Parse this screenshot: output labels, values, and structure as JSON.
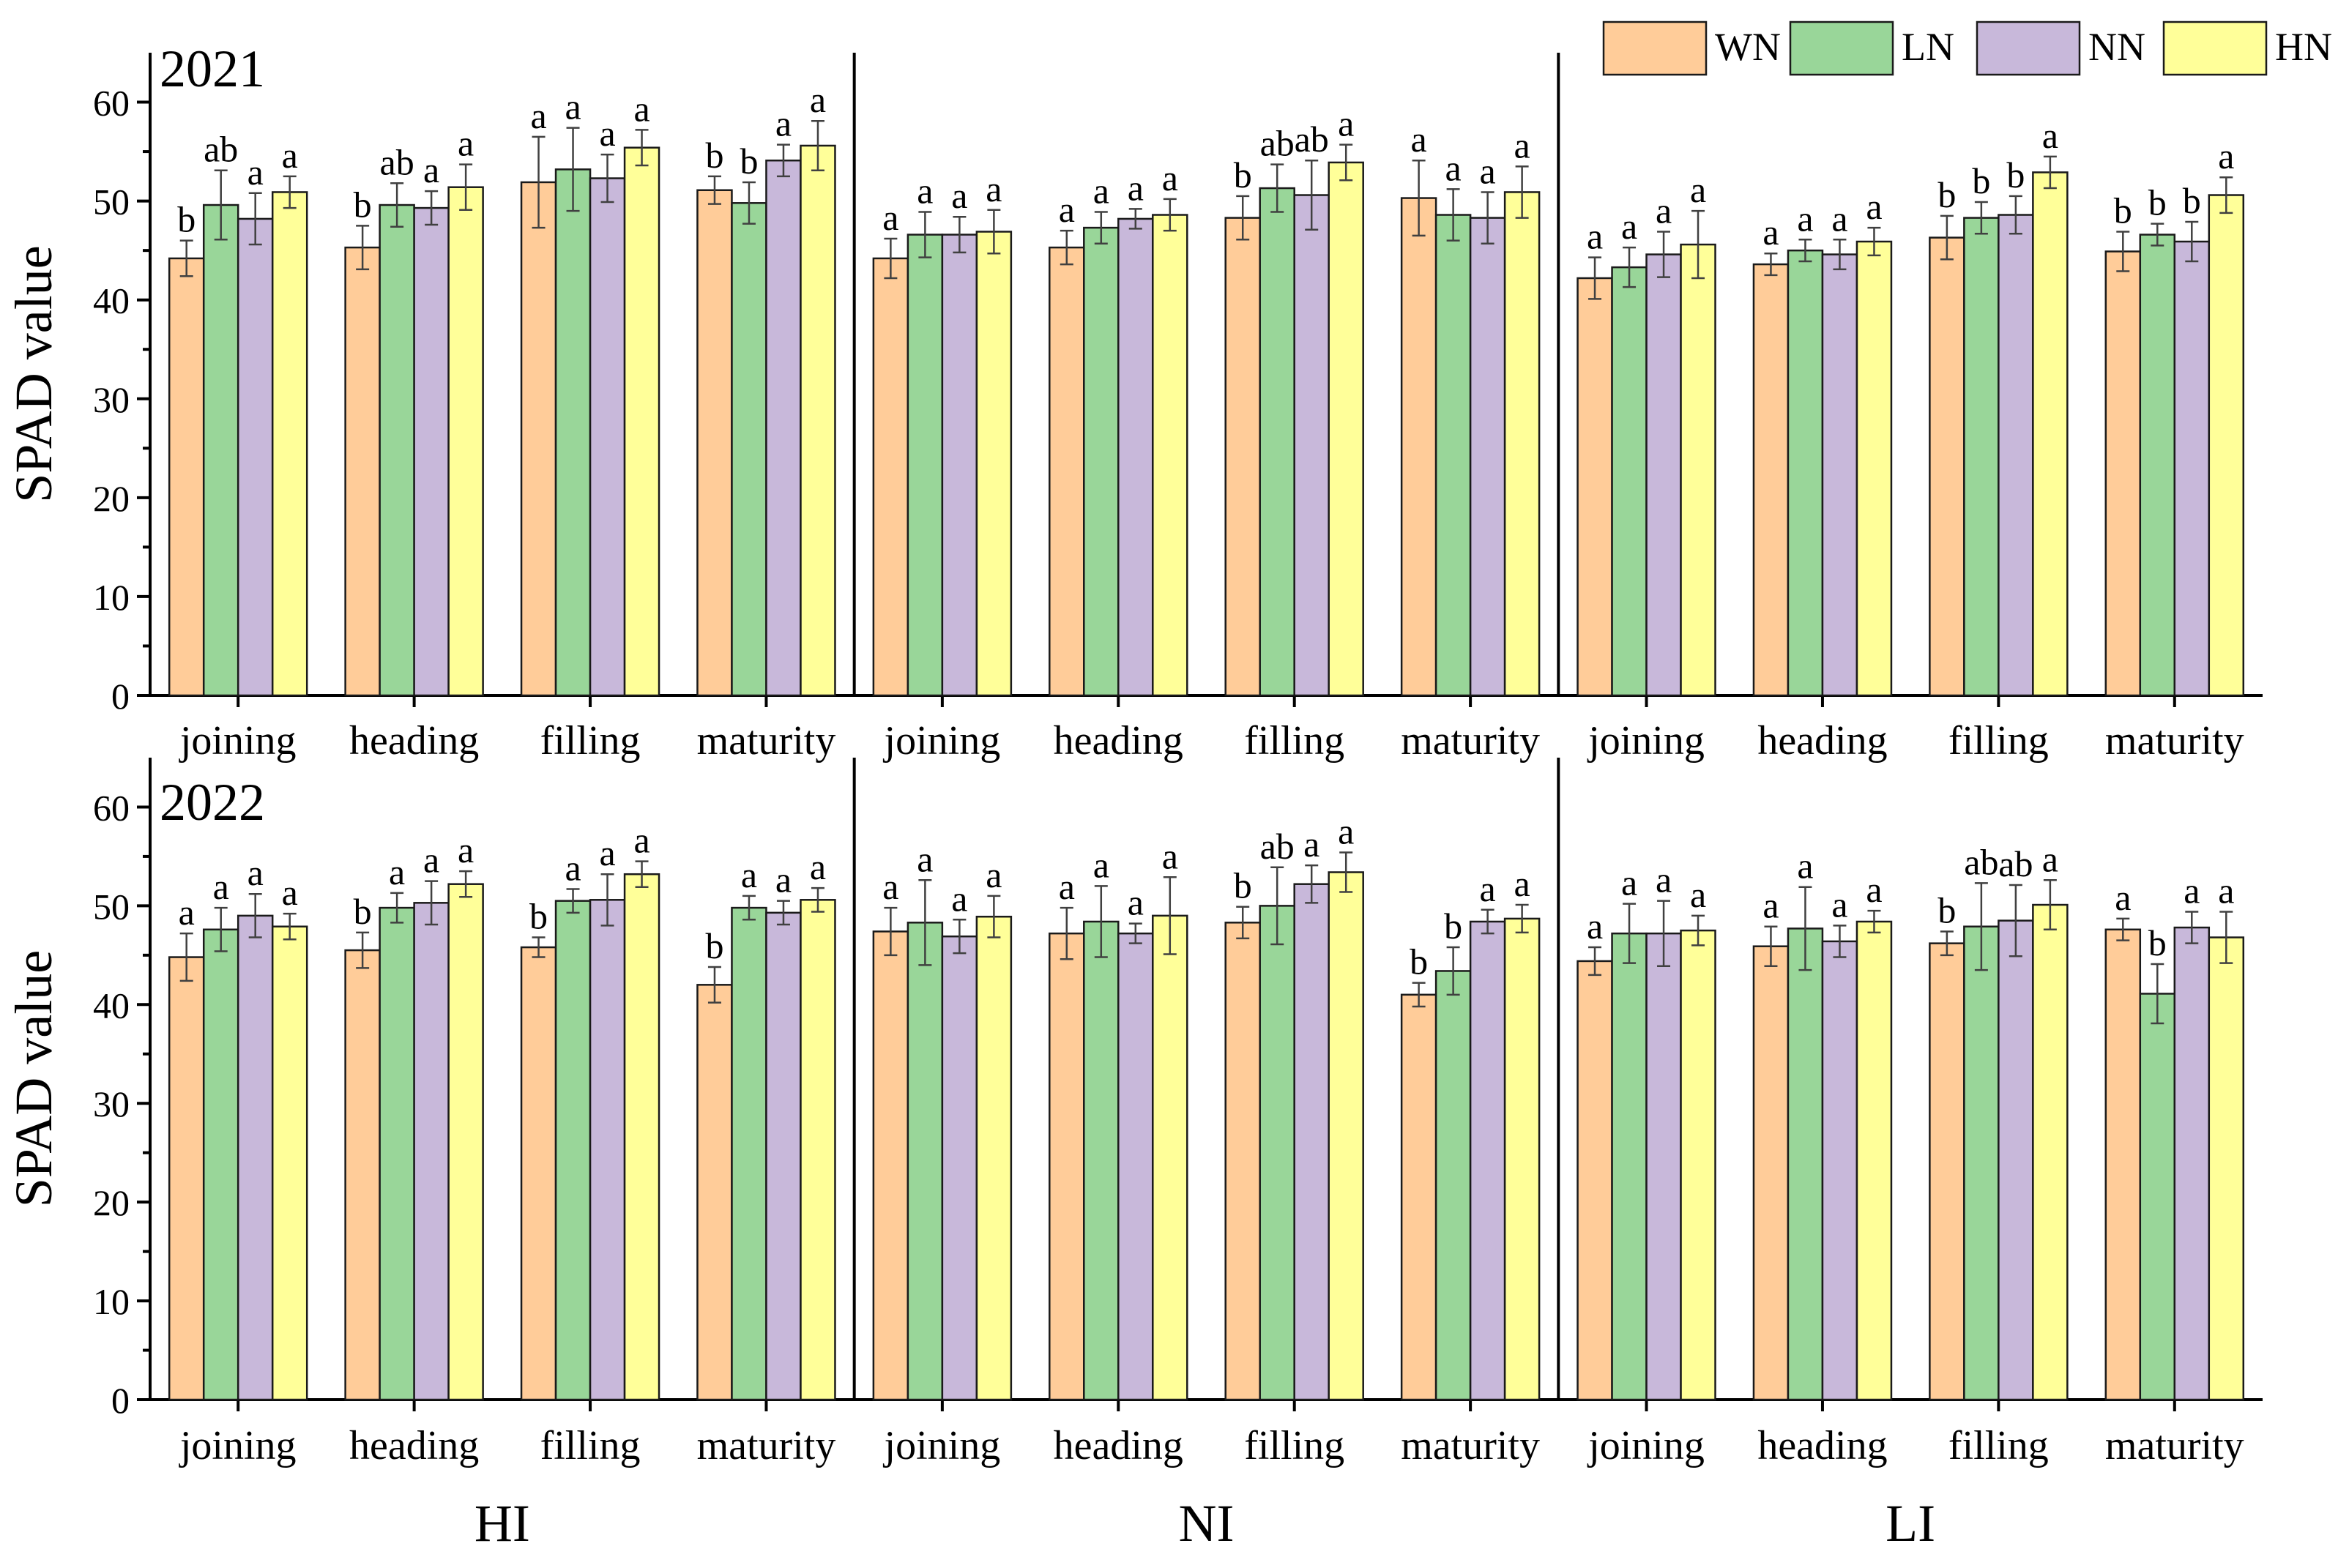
{
  "chart_data": {
    "type": "bar",
    "ylabel": "SPAD value",
    "ylim": [
      0,
      65
    ],
    "yticks": [
      0,
      10,
      20,
      30,
      40,
      50,
      60
    ],
    "categories": [
      "joining",
      "heading",
      "filling",
      "maturity"
    ],
    "legend": {
      "position": "top-right",
      "entries": [
        {
          "name": "WN",
          "color": "#FFCC99"
        },
        {
          "name": "LN",
          "color": "#99D699"
        },
        {
          "name": "NN",
          "color": "#C8B8DA"
        },
        {
          "name": "HN",
          "color": "#FFFF99"
        }
      ]
    },
    "groups": [
      "HI",
      "NI",
      "LI"
    ],
    "panels": [
      {
        "year": "2021",
        "groups": [
          {
            "name": "HI",
            "values": [
              [
                44.2,
                49.6,
                48.2,
                50.9
              ],
              [
                45.3,
                49.6,
                49.3,
                51.4
              ],
              [
                51.9,
                53.2,
                52.3,
                55.4
              ],
              [
                51.1,
                49.8,
                54.1,
                55.6
              ]
            ],
            "errors": [
              [
                1.8,
                3.5,
                2.6,
                1.6
              ],
              [
                2.2,
                2.2,
                1.7,
                2.3
              ],
              [
                4.6,
                4.2,
                2.4,
                1.8
              ],
              [
                1.4,
                2.1,
                1.6,
                2.5
              ]
            ],
            "letters": [
              [
                "b",
                "ab",
                "a",
                "a"
              ],
              [
                "b",
                "ab",
                "a",
                "a"
              ],
              [
                "a",
                "a",
                "a",
                "a"
              ],
              [
                "b",
                "b",
                "a",
                "a"
              ]
            ]
          },
          {
            "name": "NI",
            "values": [
              [
                44.2,
                46.6,
                46.6,
                46.9
              ],
              [
                45.3,
                47.3,
                48.2,
                48.6
              ],
              [
                48.3,
                51.3,
                50.6,
                53.9
              ],
              [
                50.3,
                48.6,
                48.3,
                50.9
              ]
            ],
            "errors": [
              [
                2.0,
                2.3,
                1.8,
                2.2
              ],
              [
                1.7,
                1.6,
                1.0,
                1.6
              ],
              [
                2.2,
                2.4,
                3.5,
                1.8
              ],
              [
                3.8,
                2.6,
                2.6,
                2.6
              ]
            ],
            "letters": [
              [
                "a",
                "a",
                "a",
                "a"
              ],
              [
                "a",
                "a",
                "a",
                "a"
              ],
              [
                "b",
                "ab",
                "ab",
                "a"
              ],
              [
                "a",
                "a",
                "a",
                "a"
              ]
            ]
          },
          {
            "name": "LI",
            "values": [
              [
                42.2,
                43.3,
                44.6,
                45.6
              ],
              [
                43.6,
                45.0,
                44.6,
                45.9
              ],
              [
                46.3,
                48.3,
                48.6,
                52.9
              ],
              [
                44.9,
                46.6,
                45.9,
                50.6
              ]
            ],
            "errors": [
              [
                2.1,
                2.0,
                2.3,
                3.4
              ],
              [
                1.1,
                1.1,
                1.5,
                1.4
              ],
              [
                2.2,
                1.6,
                1.9,
                1.6
              ],
              [
                2.0,
                1.1,
                2.0,
                1.8
              ]
            ],
            "letters": [
              [
                "a",
                "a",
                "a",
                "a"
              ],
              [
                "a",
                "a",
                "a",
                "a"
              ],
              [
                "b",
                "b",
                "b",
                "a"
              ],
              [
                "b",
                "b",
                "b",
                "a"
              ]
            ]
          }
        ]
      },
      {
        "year": "2022",
        "groups": [
          {
            "name": "HI",
            "values": [
              [
                44.8,
                47.6,
                49.0,
                47.9
              ],
              [
                45.5,
                49.8,
                50.3,
                52.2
              ],
              [
                45.8,
                50.5,
                50.6,
                53.2
              ],
              [
                42.0,
                49.8,
                49.3,
                50.6
              ]
            ],
            "errors": [
              [
                2.4,
                2.2,
                2.2,
                1.3
              ],
              [
                1.8,
                1.5,
                2.2,
                1.3
              ],
              [
                1.0,
                1.2,
                2.6,
                1.3
              ],
              [
                1.8,
                1.2,
                1.2,
                1.2
              ]
            ],
            "letters": [
              [
                "a",
                "a",
                "a",
                "a"
              ],
              [
                "b",
                "a",
                "a",
                "a"
              ],
              [
                "b",
                "a",
                "a",
                "a"
              ],
              [
                "b",
                "a",
                "a",
                "a"
              ]
            ]
          },
          {
            "name": "NI",
            "values": [
              [
                47.4,
                48.3,
                46.9,
                48.9
              ],
              [
                47.2,
                48.4,
                47.2,
                49.0
              ],
              [
                48.3,
                50.0,
                52.2,
                53.4
              ],
              [
                41.0,
                43.4,
                48.4,
                48.7
              ]
            ],
            "errors": [
              [
                2.4,
                4.3,
                1.7,
                2.1
              ],
              [
                2.6,
                3.6,
                1.0,
                3.9
              ],
              [
                1.6,
                3.9,
                1.9,
                2.0
              ],
              [
                1.2,
                2.4,
                1.2,
                1.4
              ]
            ],
            "letters": [
              [
                "a",
                "a",
                "a",
                "a"
              ],
              [
                "a",
                "a",
                "a",
                "a"
              ],
              [
                "b",
                "ab",
                "a",
                "a"
              ],
              [
                "b",
                "b",
                "a",
                "a"
              ]
            ]
          },
          {
            "name": "LI",
            "values": [
              [
                44.4,
                47.2,
                47.2,
                47.5
              ],
              [
                45.9,
                47.7,
                46.4,
                48.4
              ],
              [
                46.2,
                47.9,
                48.5,
                50.1
              ],
              [
                47.6,
                41.1,
                47.8,
                46.8
              ]
            ],
            "errors": [
              [
                1.4,
                3.0,
                3.3,
                1.5
              ],
              [
                2.0,
                4.2,
                1.6,
                1.1
              ],
              [
                1.2,
                4.4,
                3.6,
                2.5
              ],
              [
                1.1,
                3.0,
                1.6,
                2.6
              ]
            ],
            "letters": [
              [
                "a",
                "a",
                "a",
                "a"
              ],
              [
                "a",
                "a",
                "a",
                "a"
              ],
              [
                "b",
                "ab",
                "ab",
                "a"
              ],
              [
                "a",
                "b",
                "a",
                "a"
              ]
            ]
          }
        ]
      }
    ]
  }
}
